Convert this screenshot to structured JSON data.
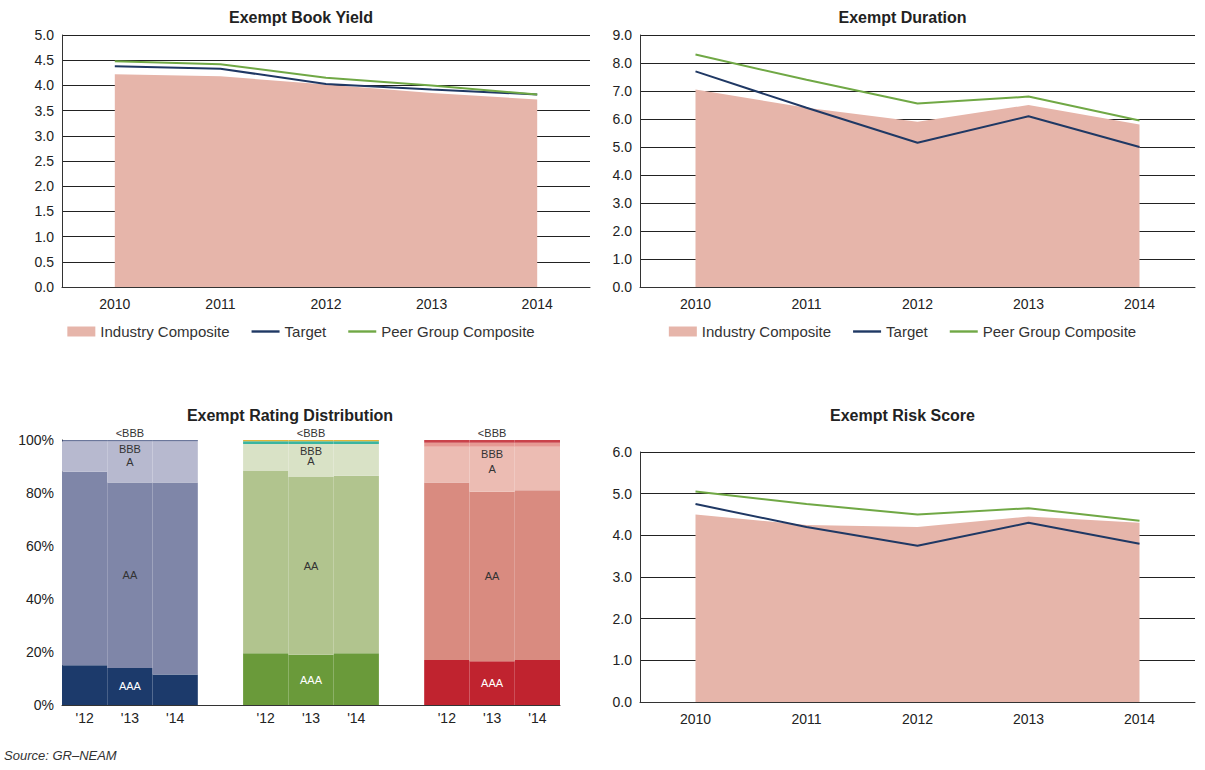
{
  "source": "Source: GR–NEAM",
  "chart_data": [
    {
      "type": "line",
      "title": "Exempt Book Yield",
      "categories": [
        "2010",
        "2011",
        "2012",
        "2013",
        "2014"
      ],
      "series": [
        {
          "name": "Industry Composite",
          "type": "area",
          "color": "#e6b5aa",
          "values": [
            4.22,
            4.18,
            4.02,
            3.85,
            3.72
          ]
        },
        {
          "name": "Target",
          "type": "line",
          "color": "#1f3864",
          "values": [
            4.38,
            4.33,
            4.03,
            3.92,
            3.82
          ]
        },
        {
          "name": "Peer Group Composite",
          "type": "line",
          "color": "#70a845",
          "values": [
            4.48,
            4.42,
            4.15,
            4.0,
            3.82
          ]
        }
      ],
      "ylim": [
        0,
        5
      ],
      "yticks": [
        {
          "value": 0,
          "label": "0.0"
        },
        0.5,
        {
          "value": 1,
          "label": "1.0"
        },
        1.5,
        {
          "value": 2,
          "label": "2.0"
        },
        2.5,
        {
          "value": 3,
          "label": "3.0"
        },
        3.5,
        {
          "value": 4,
          "label": "4.0"
        },
        4.5,
        {
          "value": 5,
          "label": "5.0"
        }
      ],
      "grid": true,
      "legend": "bottom"
    },
    {
      "type": "line",
      "title": "Exempt Duration",
      "categories": [
        "2010",
        "2011",
        "2012",
        "2013",
        "2014"
      ],
      "series": [
        {
          "name": "Industry Composite",
          "type": "area",
          "color": "#e6b5aa",
          "values": [
            7.05,
            6.4,
            5.9,
            6.5,
            5.8
          ]
        },
        {
          "name": "Target",
          "type": "line",
          "color": "#1f3864",
          "values": [
            7.7,
            6.4,
            5.15,
            6.1,
            5.0
          ]
        },
        {
          "name": "Peer Group Composite",
          "type": "line",
          "color": "#70a845",
          "values": [
            8.3,
            7.4,
            6.55,
            6.8,
            5.95
          ]
        }
      ],
      "ylim": [
        0,
        9
      ],
      "yticks": [
        {
          "value": 0,
          "label": "0.0"
        },
        {
          "value": 1,
          "label": "1.0"
        },
        {
          "value": 2,
          "label": "2.0"
        },
        {
          "value": 3,
          "label": "3.0"
        },
        {
          "value": 4,
          "label": "4.0"
        },
        {
          "value": 5,
          "label": "5.0"
        },
        {
          "value": 6,
          "label": "6.0"
        },
        {
          "value": 7,
          "label": "7.0"
        },
        {
          "value": 8,
          "label": "8.0"
        },
        {
          "value": 9,
          "label": "9.0"
        }
      ],
      "grid": true,
      "legend": "bottom"
    },
    {
      "type": "bar",
      "title": "Exempt Rating Distribution",
      "stacked": true,
      "categories": [
        "'12",
        "'13",
        "'14",
        null,
        "'12",
        "'13",
        "'14",
        null,
        "'12",
        "'13",
        "'14"
      ],
      "series": [
        {
          "name": "AAA",
          "values": [
            15,
            14,
            11.5,
            null,
            19.5,
            19,
            19.5,
            null,
            17,
            16.5,
            17
          ],
          "colors": [
            "#1c3a6b",
            "#1c3a6b",
            "#1c3a6b",
            null,
            "#6a9a3a",
            "#6a9a3a",
            "#6a9a3a",
            null,
            "#c0232f",
            "#c0232f",
            "#c0232f"
          ]
        },
        {
          "name": "AA",
          "values": [
            73,
            70,
            72.5,
            null,
            69,
            67,
            67,
            null,
            67,
            64,
            64
          ],
          "colors": [
            "#7f86a8",
            "#7f86a8",
            "#7f86a8",
            null,
            "#b1c48e",
            "#b1c48e",
            "#b1c48e",
            null,
            "#d98b80",
            "#d98b80",
            "#d98b80"
          ]
        },
        {
          "name": "A",
          "values": [
            11.5,
            15.5,
            15.5,
            null,
            10,
            12.5,
            12,
            null,
            13.5,
            17,
            16.5
          ],
          "colors": [
            "#b7b9cf",
            "#b7b9cf",
            "#b7b9cf",
            null,
            "#d9e2c6",
            "#d9e2c6",
            "#d9e2c6",
            null,
            "#ecbcb3",
            "#ecbcb3",
            "#ecbcb3"
          ]
        },
        {
          "name": "BBB",
          "values": [
            0.3,
            0.3,
            0.3,
            null,
            1,
            1,
            1,
            null,
            1.5,
            1.5,
            1.5
          ],
          "colors": [
            "#5a6490",
            "#5a6490",
            "#5a6490",
            null,
            "#39b5a0",
            "#39b5a0",
            "#39b5a0",
            null,
            "#e69a93",
            "#e69a93",
            "#e69a93"
          ]
        },
        {
          "name": "<BBB",
          "values": [
            0.2,
            0.2,
            0.2,
            null,
            0.5,
            0.5,
            0.5,
            null,
            1,
            1,
            1
          ],
          "colors": [
            "#2b3f70",
            "#2b3f70",
            "#2b3f70",
            null,
            "#e0b43a",
            "#e0b43a",
            "#e0b43a",
            null,
            "#c9424a",
            "#c9424a",
            "#c9424a"
          ]
        }
      ],
      "ylim": [
        0,
        100
      ],
      "yticks": [
        {
          "value": 0,
          "label": "0%"
        },
        {
          "value": 20,
          "label": "20%"
        },
        {
          "value": 40,
          "label": "40%"
        },
        {
          "value": 60,
          "label": "60%"
        },
        {
          "value": 80,
          "label": "80%"
        },
        {
          "value": 100,
          "label": "100%"
        }
      ],
      "grid": false
    },
    {
      "type": "line",
      "title": "Exempt Risk Score",
      "categories": [
        "2010",
        "2011",
        "2012",
        "2013",
        "2014"
      ],
      "series": [
        {
          "name": "Industry Composite",
          "type": "area",
          "color": "#e6b5aa",
          "values": [
            4.5,
            4.25,
            4.2,
            4.45,
            4.3
          ]
        },
        {
          "name": "Target",
          "type": "line",
          "color": "#1f3864",
          "values": [
            4.75,
            4.2,
            3.75,
            4.3,
            3.8
          ]
        },
        {
          "name": "Peer Group Composite",
          "type": "line",
          "color": "#70a845",
          "values": [
            5.05,
            4.75,
            4.5,
            4.65,
            4.35
          ]
        }
      ],
      "ylim": [
        0,
        6
      ],
      "yticks": [
        {
          "value": 0,
          "label": "0.0"
        },
        {
          "value": 1,
          "label": "1.0"
        },
        {
          "value": 2,
          "label": "2.0"
        },
        {
          "value": 3,
          "label": "3.0"
        },
        {
          "value": 4,
          "label": "4.0"
        },
        {
          "value": 5,
          "label": "5.0"
        },
        {
          "value": 6,
          "label": "6.0"
        }
      ],
      "grid": true
    }
  ]
}
